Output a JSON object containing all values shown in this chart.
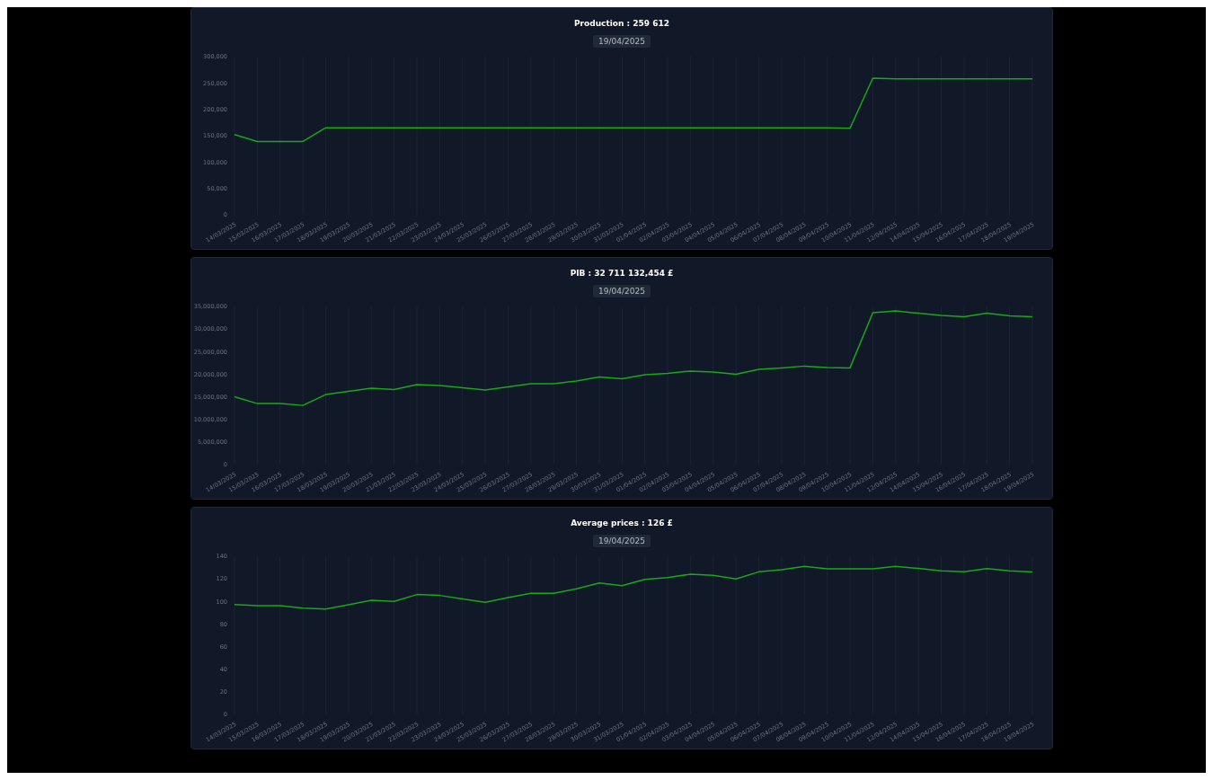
{
  "chart_data": [
    {
      "type": "line",
      "title": "Production : 259 612",
      "subtitle": "19/04/2025",
      "categories": [
        "14/03/2025",
        "15/03/2025",
        "16/03/2025",
        "17/03/2025",
        "18/03/2025",
        "19/03/2025",
        "20/03/2025",
        "21/03/2025",
        "22/03/2025",
        "23/03/2025",
        "24/03/2025",
        "25/03/2025",
        "26/03/2025",
        "27/03/2025",
        "28/03/2025",
        "29/03/2025",
        "30/03/2025",
        "31/03/2025",
        "01/04/2025",
        "02/04/2025",
        "03/04/2025",
        "04/04/2025",
        "05/04/2025",
        "06/04/2025",
        "07/04/2025",
        "08/04/2025",
        "09/04/2025",
        "10/04/2025",
        "11/04/2025",
        "12/04/2025",
        "14/04/2025",
        "15/04/2025",
        "16/04/2025",
        "17/04/2025",
        "18/04/2025",
        "19/04/2025"
      ],
      "series": [
        {
          "color": "#18a818",
          "values": [
            152000,
            139000,
            139000,
            139000,
            165000,
            165000,
            165000,
            165000,
            165000,
            165000,
            165000,
            165000,
            165000,
            165000,
            165000,
            165000,
            165000,
            165000,
            165000,
            165000,
            165000,
            165000,
            165000,
            165000,
            165000,
            165000,
            165000,
            164000,
            259000,
            258000,
            258000,
            258000,
            258000,
            258000,
            258000,
            258000
          ]
        }
      ],
      "ylim": [
        0,
        300000
      ],
      "yticks": [
        0,
        {
          "value": 50000,
          "label": "50,000"
        },
        {
          "value": 100000,
          "label": "100,000"
        },
        {
          "value": 150000,
          "label": "150,000"
        },
        {
          "value": 200000,
          "label": "200,000"
        },
        {
          "value": 250000,
          "label": "250,000"
        },
        {
          "value": 300000,
          "label": "300,000"
        }
      ],
      "grid": "x",
      "marker": "none"
    },
    {
      "type": "line",
      "title": "PIB : 32 711 132,454 £",
      "subtitle": "19/04/2025",
      "categories": [
        "14/03/2025",
        "15/03/2025",
        "16/03/2025",
        "17/03/2025",
        "18/03/2025",
        "19/03/2025",
        "20/03/2025",
        "21/03/2025",
        "22/03/2025",
        "23/03/2025",
        "24/03/2025",
        "25/03/2025",
        "26/03/2025",
        "27/03/2025",
        "28/03/2025",
        "29/03/2025",
        "30/03/2025",
        "31/03/2025",
        "01/04/2025",
        "02/04/2025",
        "03/04/2025",
        "04/04/2025",
        "05/04/2025",
        "06/04/2025",
        "07/04/2025",
        "08/04/2025",
        "09/04/2025",
        "10/04/2025",
        "11/04/2025",
        "12/04/2025",
        "14/04/2025",
        "15/04/2025",
        "16/04/2025",
        "17/04/2025",
        "18/04/2025",
        "19/04/2025"
      ],
      "series": [
        {
          "color": "#18a818",
          "values": [
            15000000,
            13500000,
            13500000,
            13100000,
            15500000,
            16200000,
            16900000,
            16600000,
            17700000,
            17500000,
            17000000,
            16500000,
            17200000,
            17900000,
            17900000,
            18500000,
            19400000,
            19000000,
            19900000,
            20200000,
            20700000,
            20500000,
            20000000,
            21100000,
            21400000,
            21800000,
            21500000,
            21400000,
            33600000,
            34000000,
            33500000,
            33000000,
            32700000,
            33500000,
            32900000,
            32700000
          ]
        }
      ],
      "ylim": [
        0,
        35000000
      ],
      "yticks": [
        0,
        {
          "value": 5000000,
          "label": "5,000,000"
        },
        {
          "value": 10000000,
          "label": "10,000,000"
        },
        {
          "value": 15000000,
          "label": "15,000,000"
        },
        {
          "value": 20000000,
          "label": "20,000,000"
        },
        {
          "value": 25000000,
          "label": "25,000,000"
        },
        {
          "value": 30000000,
          "label": "30,000,000"
        },
        {
          "value": 35000000,
          "label": "35,000,000"
        }
      ],
      "grid": "x",
      "marker": "none"
    },
    {
      "type": "line",
      "title": "Average prices : 126 £",
      "subtitle": "19/04/2025",
      "categories": [
        "14/03/2025",
        "15/03/2025",
        "16/03/2025",
        "17/03/2025",
        "18/03/2025",
        "19/03/2025",
        "20/03/2025",
        "21/03/2025",
        "22/03/2025",
        "23/03/2025",
        "24/03/2025",
        "25/03/2025",
        "26/03/2025",
        "27/03/2025",
        "28/03/2025",
        "29/03/2025",
        "30/03/2025",
        "31/03/2025",
        "01/04/2025",
        "02/04/2025",
        "03/04/2025",
        "04/04/2025",
        "05/04/2025",
        "06/04/2025",
        "07/04/2025",
        "08/04/2025",
        "09/04/2025",
        "10/04/2025",
        "11/04/2025",
        "12/04/2025",
        "14/04/2025",
        "15/04/2025",
        "16/04/2025",
        "17/04/2025",
        "18/04/2025",
        "19/04/2025"
      ],
      "series": [
        {
          "color": "#18a818",
          "values": [
            97.2,
            96.2,
            96.2,
            94.1,
            93.2,
            97.0,
            101.1,
            100,
            106.1,
            105.3,
            102.3,
            99.2,
            103.4,
            107.2,
            107.2,
            111.2,
            116.3,
            114.0,
            119.5,
            121.2,
            124.1,
            123.1,
            119.9,
            126.2,
            128.1,
            131.1,
            128.8,
            128.8,
            128.8,
            131.1,
            129.2,
            127.1,
            126.2,
            129.0,
            127.1,
            126
          ]
        }
      ],
      "ylim": [
        0,
        140
      ],
      "yticks": [
        0,
        20,
        40,
        60,
        80,
        100,
        120,
        140
      ],
      "grid": "x",
      "marker": "none"
    }
  ]
}
